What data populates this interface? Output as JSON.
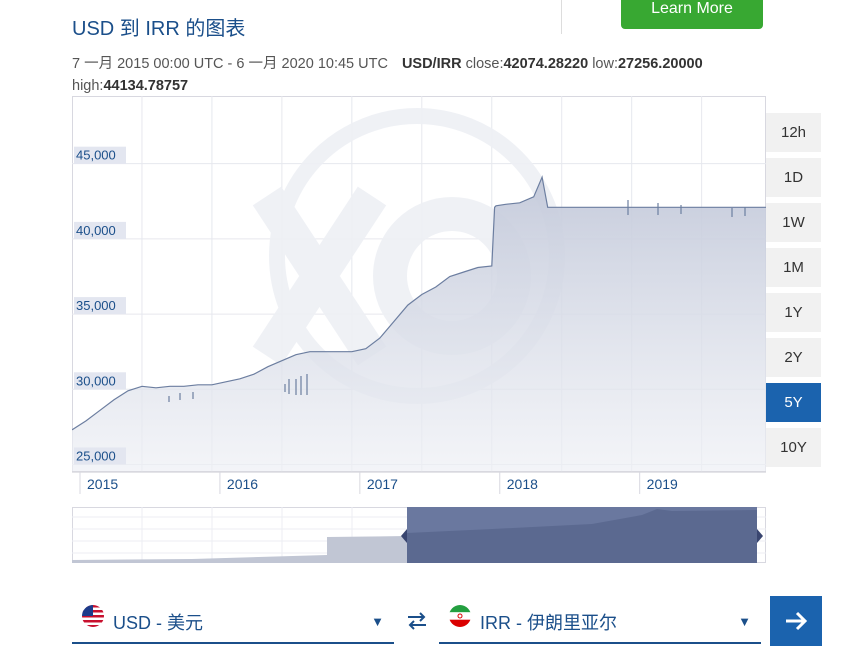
{
  "header": {
    "title": "USD 到 IRR 的图表",
    "learn_more_label": "Learn More"
  },
  "meta": {
    "range_text": "7 一月 2015 00:00 UTC - 6 一月 2020 10:45 UTC",
    "pair": "USD/IRR",
    "close_label": "close:",
    "close_value": "42074.28220",
    "low_label": "low:",
    "low_value": "27256.20000",
    "high_label": "high:",
    "high_value": "44134.78757"
  },
  "range_buttons": [
    "12h",
    "1D",
    "1W",
    "1M",
    "1Y",
    "2Y",
    "5Y",
    "10Y"
  ],
  "active_range": "5Y",
  "from_currency": {
    "code": "USD - 美元",
    "icon": "us-flag-icon"
  },
  "to_currency": {
    "code": "IRR - 伊朗里亚尔",
    "icon": "iran-flag-icon"
  },
  "colors": {
    "title": "#1b4f8a",
    "learn_more_bg": "#38a832",
    "active_button": "#1b63ae",
    "series_line": "#6c7ea0",
    "navigator_fill": "#69789f"
  },
  "chart_data": {
    "type": "area",
    "title": "",
    "xlabel": "",
    "ylabel": "",
    "x_tick_labels": [
      "2015",
      "2016",
      "2017",
      "2018",
      "2019"
    ],
    "y_tick_labels": [
      "25,000",
      "30,000",
      "35,000",
      "40,000",
      "45,000"
    ],
    "y_ticks": [
      25000,
      30000,
      35000,
      40000,
      45000
    ],
    "xlim": [
      2015.0,
      2019.96
    ],
    "ylim": [
      24500,
      49500
    ],
    "grid": true,
    "legend": "none",
    "series": [
      {
        "x": [
          2015.0,
          2015.1,
          2015.2,
          2015.3,
          2015.4,
          2015.5,
          2015.6,
          2015.7,
          2015.8,
          2015.9,
          2016.0,
          2016.1,
          2016.2,
          2016.3,
          2016.4,
          2016.5,
          2016.6,
          2016.7,
          2016.8,
          2016.9,
          2017.0,
          2017.1,
          2017.2,
          2017.3,
          2017.4,
          2017.5,
          2017.6,
          2017.7,
          2017.8,
          2017.9,
          2018.0,
          2018.02,
          2018.03,
          2018.1,
          2018.2,
          2018.3,
          2018.36,
          2018.4,
          2018.5,
          2018.6,
          2018.8,
          2019.0,
          2019.2,
          2019.4,
          2019.6,
          2019.8,
          2019.96
        ],
        "y": [
          27300,
          27900,
          28600,
          29300,
          29900,
          30200,
          30100,
          30200,
          30200,
          30300,
          30300,
          30500,
          30700,
          31000,
          31500,
          31900,
          32300,
          32500,
          32500,
          32500,
          32500,
          32700,
          33400,
          34500,
          35600,
          36300,
          36800,
          37500,
          37800,
          38100,
          38200,
          42100,
          42200,
          42300,
          42400,
          42800,
          44100,
          42100,
          42100,
          42100,
          42100,
          42100,
          42100,
          42100,
          42100,
          42100,
          42100
        ]
      }
    ]
  }
}
